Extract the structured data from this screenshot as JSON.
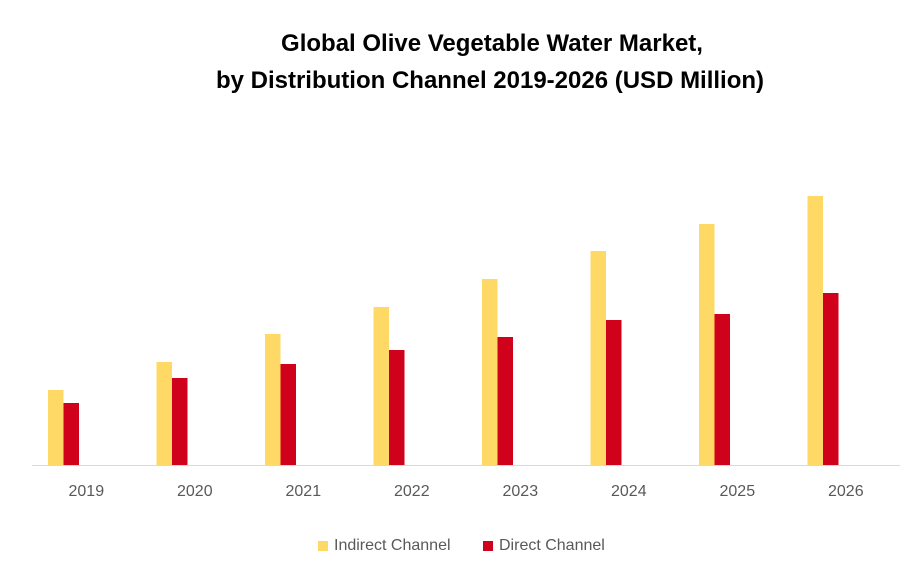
{
  "chart_data": {
    "type": "bar",
    "title": "Global Olive Vegetable Water Market,",
    "subtitle": "by Distribution Channel 2019-2026 (USD Million)",
    "xlabel": "",
    "ylabel": "",
    "categories": [
      "2019",
      "2020",
      "2021",
      "2022",
      "2023",
      "2024",
      "2025",
      "2026"
    ],
    "series": [
      {
        "name": "Indirect Channel",
        "color": "#FFD966",
        "values": [
          75,
          103,
          131,
          158,
          186,
          214,
          241,
          269
        ]
      },
      {
        "name": "Direct Channel",
        "color": "#D0021B",
        "values": [
          62,
          87,
          101,
          115,
          128,
          145,
          151,
          172
        ]
      }
    ],
    "ylim": [
      0,
      300
    ],
    "grid": false,
    "legend": "bottom",
    "axis_color": "#D9D9D9"
  }
}
